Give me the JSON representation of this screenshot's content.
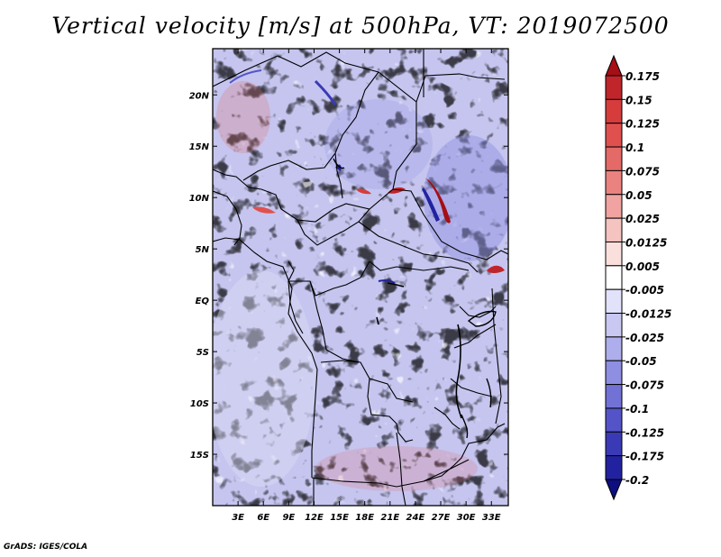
{
  "title": "Vertical velocity [m/s] at 500hPa, VT: 2019072500",
  "credit": "GrADS: IGES/COLA",
  "map": {
    "lon_range": [
      0,
      35
    ],
    "lat_range": [
      -20,
      24.5
    ],
    "lon_ticks": [
      {
        "lon": 3,
        "label": "3E"
      },
      {
        "lon": 6,
        "label": "6E"
      },
      {
        "lon": 9,
        "label": "9E"
      },
      {
        "lon": 12,
        "label": "12E"
      },
      {
        "lon": 15,
        "label": "15E"
      },
      {
        "lon": 18,
        "label": "18E"
      },
      {
        "lon": 21,
        "label": "21E"
      },
      {
        "lon": 24,
        "label": "24E"
      },
      {
        "lon": 27,
        "label": "27E"
      },
      {
        "lon": 30,
        "label": "30E"
      },
      {
        "lon": 33,
        "label": "33E"
      }
    ],
    "lat_ticks": [
      {
        "lat": 20,
        "label": "20N"
      },
      {
        "lat": 15,
        "label": "15N"
      },
      {
        "lat": 10,
        "label": "10N"
      },
      {
        "lat": 5,
        "label": "5N"
      },
      {
        "lat": 0,
        "label": "EQ"
      },
      {
        "lat": -5,
        "label": "5S"
      },
      {
        "lat": -10,
        "label": "10S"
      },
      {
        "lat": -15,
        "label": "15S"
      }
    ]
  },
  "colorbar": {
    "labels": [
      "0.175",
      "0.15",
      "0.125",
      "0.1",
      "0.075",
      "0.05",
      "0.025",
      "0.0125",
      "0.005",
      "-0.005",
      "-0.0125",
      "-0.025",
      "-0.05",
      "-0.075",
      "-0.1",
      "-0.125",
      "-0.175",
      "-0.2"
    ],
    "colors": [
      "#a50f15",
      "#c0252b",
      "#d63c3c",
      "#e0504f",
      "#e46a67",
      "#ea8380",
      "#f0a3a0",
      "#f5c3c0",
      "#fae0dd",
      "#ffffff",
      "#e2e2fa",
      "#c8c8f2",
      "#aeaeec",
      "#8e8ee2",
      "#7272d6",
      "#5454c8",
      "#3a3ab6",
      "#2222a0",
      "#0e0e80"
    ]
  }
}
